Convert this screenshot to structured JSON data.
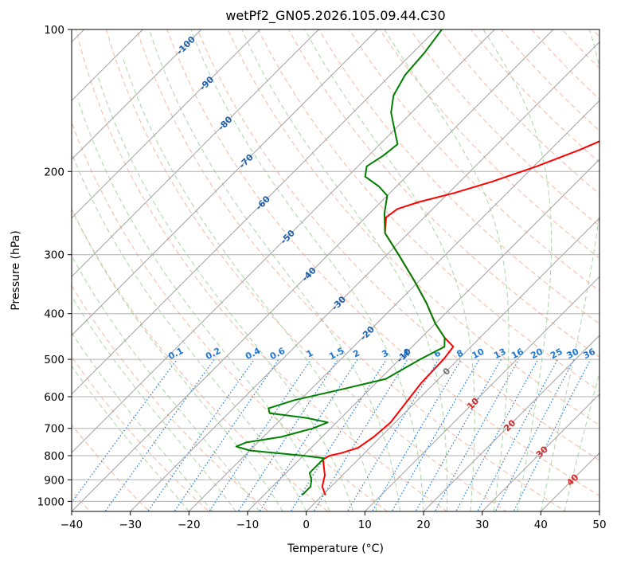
{
  "chart_data": {
    "type": "line",
    "subtype": "skew-t log-p",
    "title": "wetPf2_GN05.2026.105.09.44.C30",
    "xlabel": "Temperature (°C)",
    "ylabel": "Pressure (hPa)",
    "xlim": [
      -40,
      50
    ],
    "ylim_hPa": [
      1050,
      100
    ],
    "x_ticks": [
      -40,
      -30,
      -20,
      -10,
      0,
      10,
      20,
      30,
      40,
      50
    ],
    "y_ticks": [
      1000,
      900,
      800,
      700,
      600,
      500,
      400,
      300,
      200,
      100
    ],
    "grid": true,
    "series": [
      {
        "name": "Temperature",
        "color": "#ff0000",
        "points": [
          {
            "p": 970,
            "t": 0.5
          },
          {
            "p": 930,
            "t": -1.5
          },
          {
            "p": 880,
            "t": -3.0
          },
          {
            "p": 840,
            "t": -4.8
          },
          {
            "p": 815,
            "t": -6.0
          },
          {
            "p": 800,
            "t": -5.5
          },
          {
            "p": 790,
            "t": -4.0
          },
          {
            "p": 770,
            "t": -2.0
          },
          {
            "p": 730,
            "t": -1.2
          },
          {
            "p": 680,
            "t": -0.8
          },
          {
            "p": 620,
            "t": -1.5
          },
          {
            "p": 560,
            "t": -2.3
          },
          {
            "p": 500,
            "t": -2.5
          },
          {
            "p": 470,
            "t": -3.0
          },
          {
            "p": 450,
            "t": -6.0
          },
          {
            "p": 420,
            "t": -10.0
          },
          {
            "p": 380,
            "t": -15.0
          },
          {
            "p": 340,
            "t": -21.0
          },
          {
            "p": 300,
            "t": -28.0
          },
          {
            "p": 270,
            "t": -34.0
          },
          {
            "p": 250,
            "t": -36.5
          },
          {
            "p": 240,
            "t": -36.0
          },
          {
            "p": 232,
            "t": -33.5
          },
          {
            "p": 222,
            "t": -29.0
          },
          {
            "p": 210,
            "t": -24.5
          },
          {
            "p": 195,
            "t": -19.5
          },
          {
            "p": 180,
            "t": -15.0
          },
          {
            "p": 165,
            "t": -11.0
          },
          {
            "p": 150,
            "t": -8.0
          },
          {
            "p": 135,
            "t": -5.5
          },
          {
            "p": 120,
            "t": -3.5
          },
          {
            "p": 110,
            "t": -2.8
          },
          {
            "p": 100,
            "t": -2.2
          }
        ]
      },
      {
        "name": "Dewpoint",
        "color": "#008000",
        "points": [
          {
            "p": 970,
            "t": -3.5
          },
          {
            "p": 930,
            "t": -3.5
          },
          {
            "p": 900,
            "t": -4.5
          },
          {
            "p": 870,
            "t": -6.0
          },
          {
            "p": 840,
            "t": -6.0
          },
          {
            "p": 810,
            "t": -6.0
          },
          {
            "p": 800,
            "t": -10.0
          },
          {
            "p": 790,
            "t": -15.0
          },
          {
            "p": 780,
            "t": -20.0
          },
          {
            "p": 765,
            "t": -23.0
          },
          {
            "p": 750,
            "t": -22.0
          },
          {
            "p": 730,
            "t": -17.0
          },
          {
            "p": 700,
            "t": -13.0
          },
          {
            "p": 680,
            "t": -11.5
          },
          {
            "p": 665,
            "t": -16.0
          },
          {
            "p": 650,
            "t": -23.0
          },
          {
            "p": 635,
            "t": -24.0
          },
          {
            "p": 610,
            "t": -21.0
          },
          {
            "p": 580,
            "t": -15.0
          },
          {
            "p": 550,
            "t": -9.0
          },
          {
            "p": 500,
            "t": -6.5
          },
          {
            "p": 470,
            "t": -4.5
          },
          {
            "p": 450,
            "t": -6.0
          },
          {
            "p": 420,
            "t": -10.0
          },
          {
            "p": 380,
            "t": -15.0
          },
          {
            "p": 340,
            "t": -21.0
          },
          {
            "p": 300,
            "t": -28.0
          },
          {
            "p": 270,
            "t": -34.0
          },
          {
            "p": 245,
            "t": -37.5
          },
          {
            "p": 225,
            "t": -40.0
          },
          {
            "p": 215,
            "t": -43.0
          },
          {
            "p": 205,
            "t": -47.0
          },
          {
            "p": 195,
            "t": -48.5
          },
          {
            "p": 185,
            "t": -47.5
          },
          {
            "p": 175,
            "t": -47.0
          },
          {
            "p": 165,
            "t": -49.5
          },
          {
            "p": 150,
            "t": -53.5
          },
          {
            "p": 138,
            "t": -56.0
          },
          {
            "p": 125,
            "t": -57.5
          },
          {
            "p": 112,
            "t": -58.0
          },
          {
            "p": 100,
            "t": -59.0
          }
        ]
      }
    ],
    "background_lines": {
      "isotherms_C": [
        -100,
        -90,
        -80,
        -70,
        -60,
        -50,
        -40,
        -30,
        -20,
        -10,
        0,
        10,
        20,
        30,
        40,
        50
      ],
      "isotherm_labels": [
        "-100",
        "-90",
        "-80",
        "-70",
        "-60",
        "-50",
        "-40",
        "-30",
        "-20",
        "-10",
        "0",
        "10",
        "20",
        "30",
        "40"
      ],
      "mixing_ratio_gkg": [
        0.1,
        0.2,
        0.4,
        0.6,
        1,
        1.5,
        2,
        3,
        4,
        6,
        8,
        10,
        13,
        16,
        20,
        25,
        30,
        36
      ],
      "mixing_ratio_labels": [
        "0.1",
        "0.2",
        "0.4",
        "0.6",
        "1",
        "1.5",
        "2",
        "3",
        "4",
        "6",
        "8",
        "10",
        "13",
        "16",
        "20",
        "25",
        "30",
        "36"
      ]
    },
    "colors": {
      "temperature": "#ff0000",
      "dewpoint": "#008000",
      "dry_adiabat": "#f4b8a2",
      "moist_adiabat": "#a9d6a4",
      "mixing_ratio": "#1f77d4",
      "isotherm": "#a0a0a0",
      "isotherm_label_cold": "#1f5fa8",
      "isotherm_label_warm": "#d62728",
      "isotherm_label_zero": "#707070"
    }
  }
}
